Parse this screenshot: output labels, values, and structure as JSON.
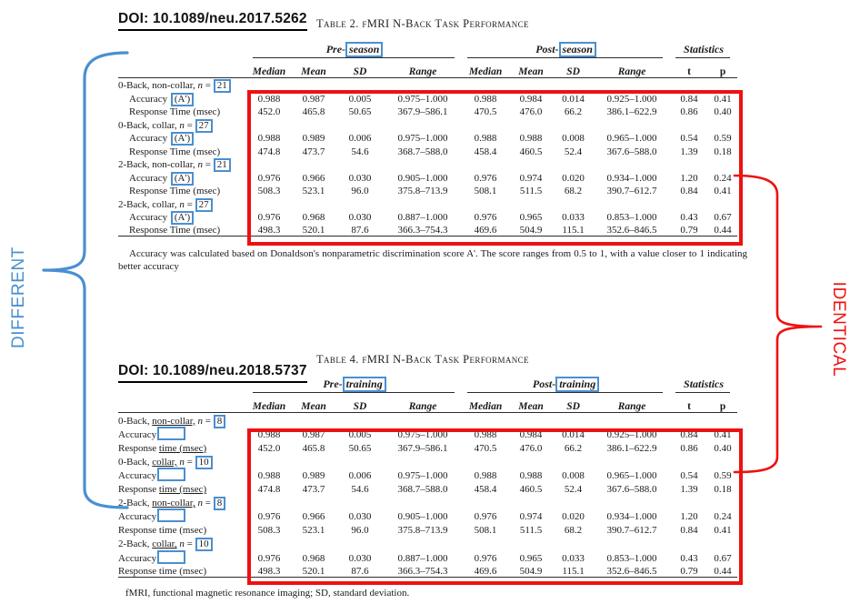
{
  "annotations": {
    "different_label": "DIFFERENT",
    "identical_label": "IDENTICAL",
    "highlight_blue": "#4a8fd1",
    "highlight_red": "#ee1111"
  },
  "tables": [
    {
      "doi": "DOI: 10.1089/neu.2017.5262",
      "caption": "Table 2. fMRI N-Back Task Performance",
      "head": {
        "pre_prefix": "Pre-",
        "pre_box": "season",
        "post_prefix": "Post-",
        "post_box": "season",
        "stats": "Statistics"
      },
      "sub_headers": [
        "Median",
        "Mean",
        "SD",
        "Range",
        "Median",
        "Mean",
        "SD",
        "Range",
        "t",
        "p"
      ],
      "indent": true,
      "groups": [
        {
          "pre": "0-Back, non-collar, ",
          "u": "",
          "post": "",
          "n": "21",
          "rows": [
            {
              "pre": "Accuracy ",
              "u": "",
              "box": "(A')",
              "values": [
                "0.988",
                "0.987",
                "0.005",
                "0.975–1.000",
                "0.988",
                "0.984",
                "0.014",
                "0.925–1.000",
                "0.84",
                "0.41"
              ]
            },
            {
              "pre": "Response Time (msec)",
              "u": "",
              "box": null,
              "values": [
                "452.0",
                "465.8",
                "50.65",
                "367.9–586.1",
                "470.5",
                "476.0",
                "66.2",
                "386.1–622.9",
                "0.86",
                "0.40"
              ]
            }
          ]
        },
        {
          "pre": "0-Back, collar, ",
          "u": "",
          "post": "",
          "n": "27",
          "rows": [
            {
              "pre": "Accuracy ",
              "u": "",
              "box": "(A')",
              "values": [
                "0.988",
                "0.989",
                "0.006",
                "0.975–1.000",
                "0.988",
                "0.988",
                "0.008",
                "0.965–1.000",
                "0.54",
                "0.59"
              ]
            },
            {
              "pre": "Response Time (msec)",
              "u": "",
              "box": null,
              "values": [
                "474.8",
                "473.7",
                "54.6",
                "368.7–588.0",
                "458.4",
                "460.5",
                "52.4",
                "367.6–588.0",
                "1.39",
                "0.18"
              ]
            }
          ]
        },
        {
          "pre": "2-Back, non-collar, ",
          "u": "",
          "post": "",
          "n": "21",
          "rows": [
            {
              "pre": "Accuracy ",
              "u": "",
              "box": "(A')",
              "values": [
                "0.976",
                "0.966",
                "0.030",
                "0.905–1.000",
                "0.976",
                "0.974",
                "0.020",
                "0.934–1.000",
                "1.20",
                "0.24"
              ]
            },
            {
              "pre": "Response Time (msec)",
              "u": "",
              "box": null,
              "values": [
                "508.3",
                "523.1",
                "96.0",
                "375.8–713.9",
                "508.1",
                "511.5",
                "68.2",
                "390.7–612.7",
                "0.84",
                "0.41"
              ]
            }
          ]
        },
        {
          "pre": "2-Back, collar, ",
          "u": "",
          "post": "",
          "n": "27",
          "rows": [
            {
              "pre": "Accuracy ",
              "u": "",
              "box": "(A')",
              "values": [
                "0.976",
                "0.968",
                "0.030",
                "0.887–1.000",
                "0.976",
                "0.965",
                "0.033",
                "0.853–1.000",
                "0.43",
                "0.67"
              ]
            },
            {
              "pre": "Response Time (msec)",
              "u": "",
              "box": null,
              "values": [
                "498.3",
                "520.1",
                "87.6",
                "366.3–754.3",
                "469.6",
                "504.9",
                "115.1",
                "352.6–846.5",
                "0.79",
                "0.44"
              ]
            }
          ]
        }
      ],
      "footnote": "Accuracy was calculated based on Donaldson's nonparametric discrimination score A'. The score ranges from 0.5 to 1, with a value closer to 1 indicating better accuracy"
    },
    {
      "doi": "DOI: 10.1089/neu.2018.5737",
      "caption": "Table 4. fMRI N-Back Task Performance",
      "head": {
        "pre_prefix": "Pre-",
        "pre_box": "training",
        "post_prefix": "Post-",
        "post_box": "training",
        "stats": "Statistics"
      },
      "sub_headers": [
        "Median",
        "Mean",
        "SD",
        "Range",
        "Median",
        "Mean",
        "SD",
        "Range",
        "t",
        "p"
      ],
      "indent": false,
      "groups": [
        {
          "pre": "0-Back, ",
          "u": "non-collar,",
          "post": " ",
          "n": "8",
          "rows": [
            {
              "pre": "Accuracy",
              "u": "",
              "box": "",
              "values": [
                "0.988",
                "0.987",
                "0.005",
                "0.975–1.000",
                "0.988",
                "0.984",
                "0.014",
                "0.925–1.000",
                "0.84",
                "0.41"
              ]
            },
            {
              "pre": "Response ",
              "u": "time (msec)",
              "box": null,
              "values": [
                "452.0",
                "465.8",
                "50.65",
                "367.9–586.1",
                "470.5",
                "476.0",
                "66.2",
                "386.1–622.9",
                "0.86",
                "0.40"
              ]
            }
          ]
        },
        {
          "pre": "0-Back, ",
          "u": "collar,",
          "post": " ",
          "n": "10",
          "rows": [
            {
              "pre": "Accuracy",
              "u": "",
              "box": "",
              "values": [
                "0.988",
                "0.989",
                "0.006",
                "0.975–1.000",
                "0.988",
                "0.988",
                "0.008",
                "0.965–1.000",
                "0.54",
                "0.59"
              ]
            },
            {
              "pre": "Response ",
              "u": "time (msec)",
              "box": null,
              "values": [
                "474.8",
                "473.7",
                "54.6",
                "368.7–588.0",
                "458.4",
                "460.5",
                "52.4",
                "367.6–588.0",
                "1.39",
                "0.18"
              ]
            }
          ]
        },
        {
          "pre": "2-Back, ",
          "u": "non-collar,",
          "post": " ",
          "n": "8",
          "rows": [
            {
              "pre": "Accuracy",
              "u": "",
              "box": "",
              "values": [
                "0.976",
                "0.966",
                "0.030",
                "0.905–1.000",
                "0.976",
                "0.974",
                "0.020",
                "0.934–1.000",
                "1.20",
                "0.24"
              ]
            },
            {
              "pre": "Response time (msec)",
              "u": "",
              "box": null,
              "values": [
                "508.3",
                "523.1",
                "96.0",
                "375.8–713.9",
                "508.1",
                "511.5",
                "68.2",
                "390.7–612.7",
                "0.84",
                "0.41"
              ]
            }
          ]
        },
        {
          "pre": "2-Back, ",
          "u": "collar,",
          "post": " ",
          "n": "10",
          "rows": [
            {
              "pre": "Accuracy",
              "u": "",
              "box": "",
              "values": [
                "0.976",
                "0.968",
                "0.030",
                "0.887–1.000",
                "0.976",
                "0.965",
                "0.033",
                "0.853–1.000",
                "0.43",
                "0.67"
              ]
            },
            {
              "pre": "Response time (msec)",
              "u": "",
              "box": null,
              "values": [
                "498.3",
                "520.1",
                "87.6",
                "366.3–754.3",
                "469.6",
                "504.9",
                "115.1",
                "352.6–846.5",
                "0.79",
                "0.44"
              ]
            }
          ]
        }
      ],
      "footnote": "fMRI, functional magnetic resonance imaging; SD, standard deviation."
    }
  ]
}
